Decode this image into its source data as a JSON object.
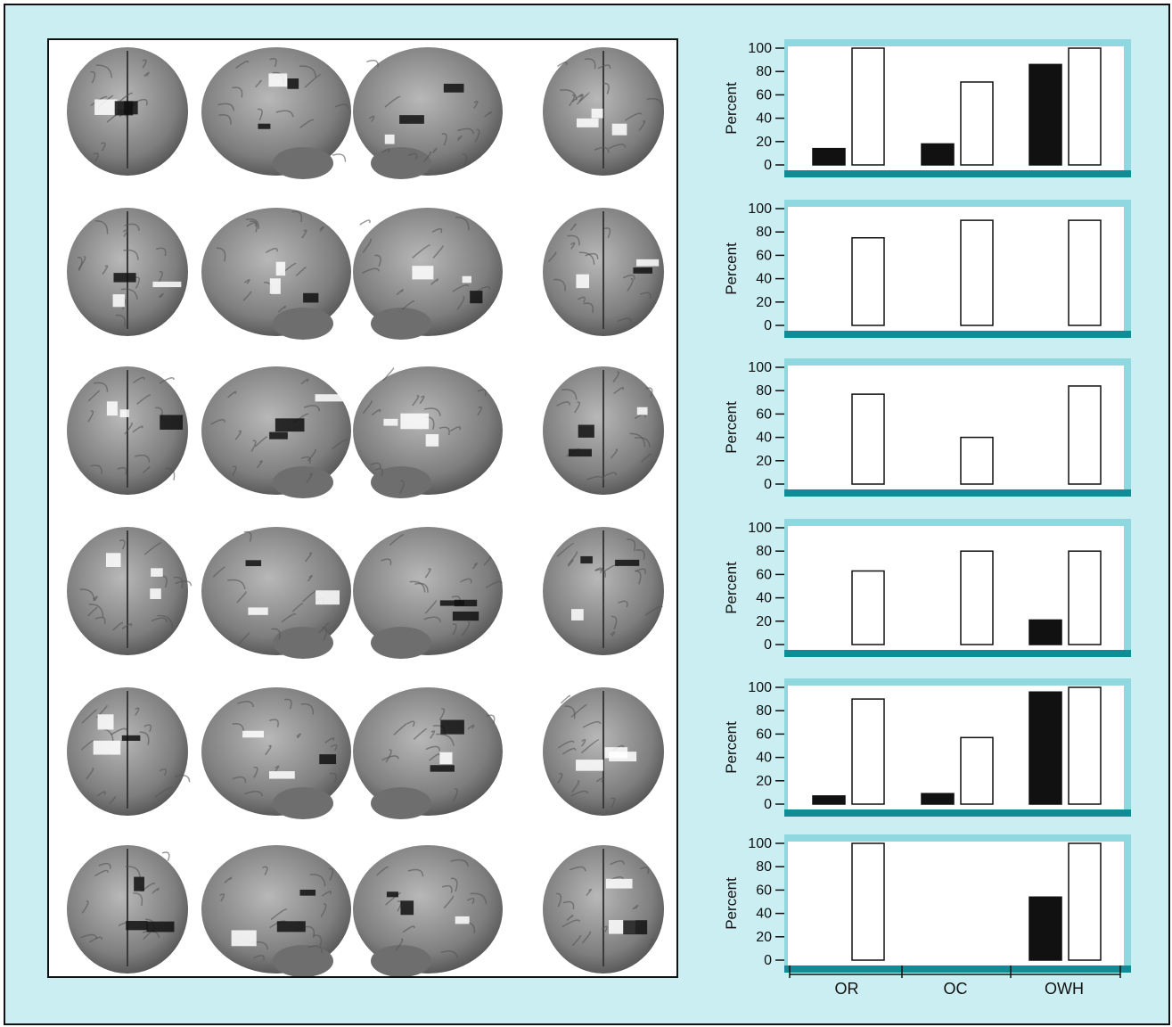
{
  "colors": {
    "figure_background": "#cbeef3",
    "chart_frame_light": "#8fd8e0",
    "chart_frame_dark": "#0f8c96",
    "bar_black": "#111111",
    "bar_white": "#ffffff",
    "brain_tone": "#8a8a8a"
  },
  "brain_panel": {
    "rows": 6,
    "views": [
      "frontal-view",
      "left-lateral-view",
      "right-lateral-view",
      "posterior-view"
    ]
  },
  "chart_data": [
    {
      "type": "bar",
      "categories": [
        "OR",
        "OC",
        "OWH"
      ],
      "ylabel": "Percent",
      "ylim": [
        0,
        100
      ],
      "yticks": [
        "0",
        "20",
        "40",
        "60",
        "80",
        "100"
      ],
      "series": [
        {
          "fill": "black",
          "values": [
            14,
            18,
            86
          ]
        },
        {
          "fill": "white",
          "values": [
            100,
            71,
            100
          ]
        }
      ]
    },
    {
      "type": "bar",
      "categories": [
        "OR",
        "OC",
        "OWH"
      ],
      "ylabel": "Percent",
      "ylim": [
        0,
        100
      ],
      "yticks": [
        "0",
        "20",
        "40",
        "60",
        "80",
        "100"
      ],
      "series": [
        {
          "fill": "black",
          "values": [
            0,
            0,
            0
          ]
        },
        {
          "fill": "white",
          "values": [
            75,
            90,
            90
          ]
        }
      ]
    },
    {
      "type": "bar",
      "categories": [
        "OR",
        "OC",
        "OWH"
      ],
      "ylabel": "Percent",
      "ylim": [
        0,
        100
      ],
      "yticks": [
        "0",
        "20",
        "40",
        "60",
        "80",
        "100"
      ],
      "series": [
        {
          "fill": "black",
          "values": [
            0,
            0,
            0
          ]
        },
        {
          "fill": "white",
          "values": [
            77,
            40,
            84
          ]
        }
      ]
    },
    {
      "type": "bar",
      "categories": [
        "OR",
        "OC",
        "OWH"
      ],
      "ylabel": "Percent",
      "ylim": [
        0,
        100
      ],
      "yticks": [
        "0",
        "20",
        "40",
        "60",
        "80",
        "100"
      ],
      "series": [
        {
          "fill": "black",
          "values": [
            0,
            0,
            21
          ]
        },
        {
          "fill": "white",
          "values": [
            63,
            80,
            80
          ]
        }
      ]
    },
    {
      "type": "bar",
      "categories": [
        "OR",
        "OC",
        "OWH"
      ],
      "ylabel": "Percent",
      "ylim": [
        0,
        100
      ],
      "yticks": [
        "0",
        "20",
        "40",
        "60",
        "80",
        "100"
      ],
      "series": [
        {
          "fill": "black",
          "values": [
            7,
            9,
            96
          ]
        },
        {
          "fill": "white",
          "values": [
            90,
            57,
            100
          ]
        }
      ]
    },
    {
      "type": "bar",
      "categories": [
        "OR",
        "OC",
        "OWH"
      ],
      "ylabel": "Percent",
      "ylim": [
        0,
        100
      ],
      "yticks": [
        "0",
        "20",
        "40",
        "60",
        "80",
        "100"
      ],
      "series": [
        {
          "fill": "black",
          "values": [
            0,
            0,
            54
          ]
        },
        {
          "fill": "white",
          "values": [
            100,
            0,
            100
          ]
        }
      ]
    }
  ],
  "x_axis": {
    "categories": [
      "OR",
      "OC",
      "OWH"
    ]
  }
}
